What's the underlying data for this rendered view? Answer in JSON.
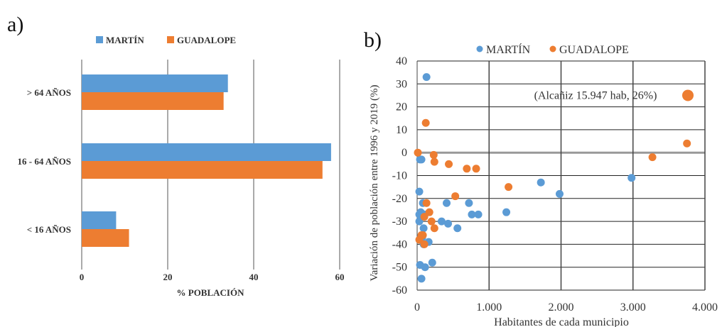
{
  "chart_data": [
    {
      "panel_label": "a)",
      "type": "bar",
      "orientation": "horizontal",
      "categories": [
        "> 64 AÑOS",
        "16 - 64 AÑOS",
        "< 16 AÑOS"
      ],
      "series": [
        {
          "name": "MARTÍN",
          "values": [
            34,
            58,
            8
          ]
        },
        {
          "name": "GUADALOPE",
          "values": [
            33,
            56,
            11
          ]
        }
      ],
      "xlabel": "% POBLACIÓN",
      "ylabel": "",
      "xlim": [
        0,
        60
      ],
      "x_ticks": [
        "0",
        "20",
        "40",
        "60"
      ],
      "grid": true,
      "legend_position": "top"
    },
    {
      "panel_label": "b)",
      "type": "scatter",
      "series": [
        {
          "name": "MARTÍN",
          "points": [
            [
              130,
              33
            ],
            [
              40,
              -3
            ],
            [
              60,
              -3
            ],
            [
              30,
              -17
            ],
            [
              80,
              -22
            ],
            [
              410,
              -22
            ],
            [
              720,
              -22
            ],
            [
              1720,
              -13
            ],
            [
              1980,
              -18
            ],
            [
              2980,
              -11
            ],
            [
              50,
              -26
            ],
            [
              30,
              -27
            ],
            [
              70,
              -27
            ],
            [
              100,
              -27
            ],
            [
              760,
              -27
            ],
            [
              850,
              -27
            ],
            [
              1240,
              -26
            ],
            [
              30,
              -30
            ],
            [
              340,
              -30
            ],
            [
              430,
              -31
            ],
            [
              560,
              -33
            ],
            [
              90,
              -33
            ],
            [
              70,
              -37
            ],
            [
              160,
              -39
            ],
            [
              90,
              -40
            ],
            [
              40,
              -49
            ],
            [
              110,
              -50
            ],
            [
              210,
              -48
            ],
            [
              60,
              -55
            ]
          ]
        },
        {
          "name": "GUADALOPE",
          "points": [
            [
              10,
              0
            ],
            [
              120,
              13
            ],
            [
              230,
              -1
            ],
            [
              240,
              -4
            ],
            [
              440,
              -5
            ],
            [
              690,
              -7
            ],
            [
              820,
              -7
            ],
            [
              1270,
              -15
            ],
            [
              3270,
              -2
            ],
            [
              3750,
              4
            ],
            [
              530,
              -19
            ],
            [
              130,
              -22
            ],
            [
              170,
              -26
            ],
            [
              100,
              -28
            ],
            [
              30,
              -38
            ],
            [
              80,
              -36
            ],
            [
              200,
              -30
            ],
            [
              240,
              -33
            ],
            [
              60,
              -36
            ],
            [
              100,
              -40
            ]
          ]
        }
      ],
      "annotation": {
        "text": "(Alcañiz 15.947 hab, 26%)",
        "y": 25
      },
      "xlabel": "Habitantes de cada municipio",
      "ylabel": "Variación de población entre 1996 y 2019 (%)",
      "xlim": [
        0,
        4000
      ],
      "ylim": [
        -60,
        40
      ],
      "x_ticks": [
        "0",
        "1.000",
        "2.000",
        "3.000",
        "4.000"
      ],
      "y_ticks": [
        "-60",
        "-50",
        "-40",
        "-30",
        "-20",
        "-10",
        "0",
        "10",
        "20",
        "30",
        "40"
      ],
      "grid": true,
      "legend_position": "top"
    }
  ],
  "colors": {
    "martin": "#5b9bd5",
    "guadalope": "#ed7d31"
  }
}
